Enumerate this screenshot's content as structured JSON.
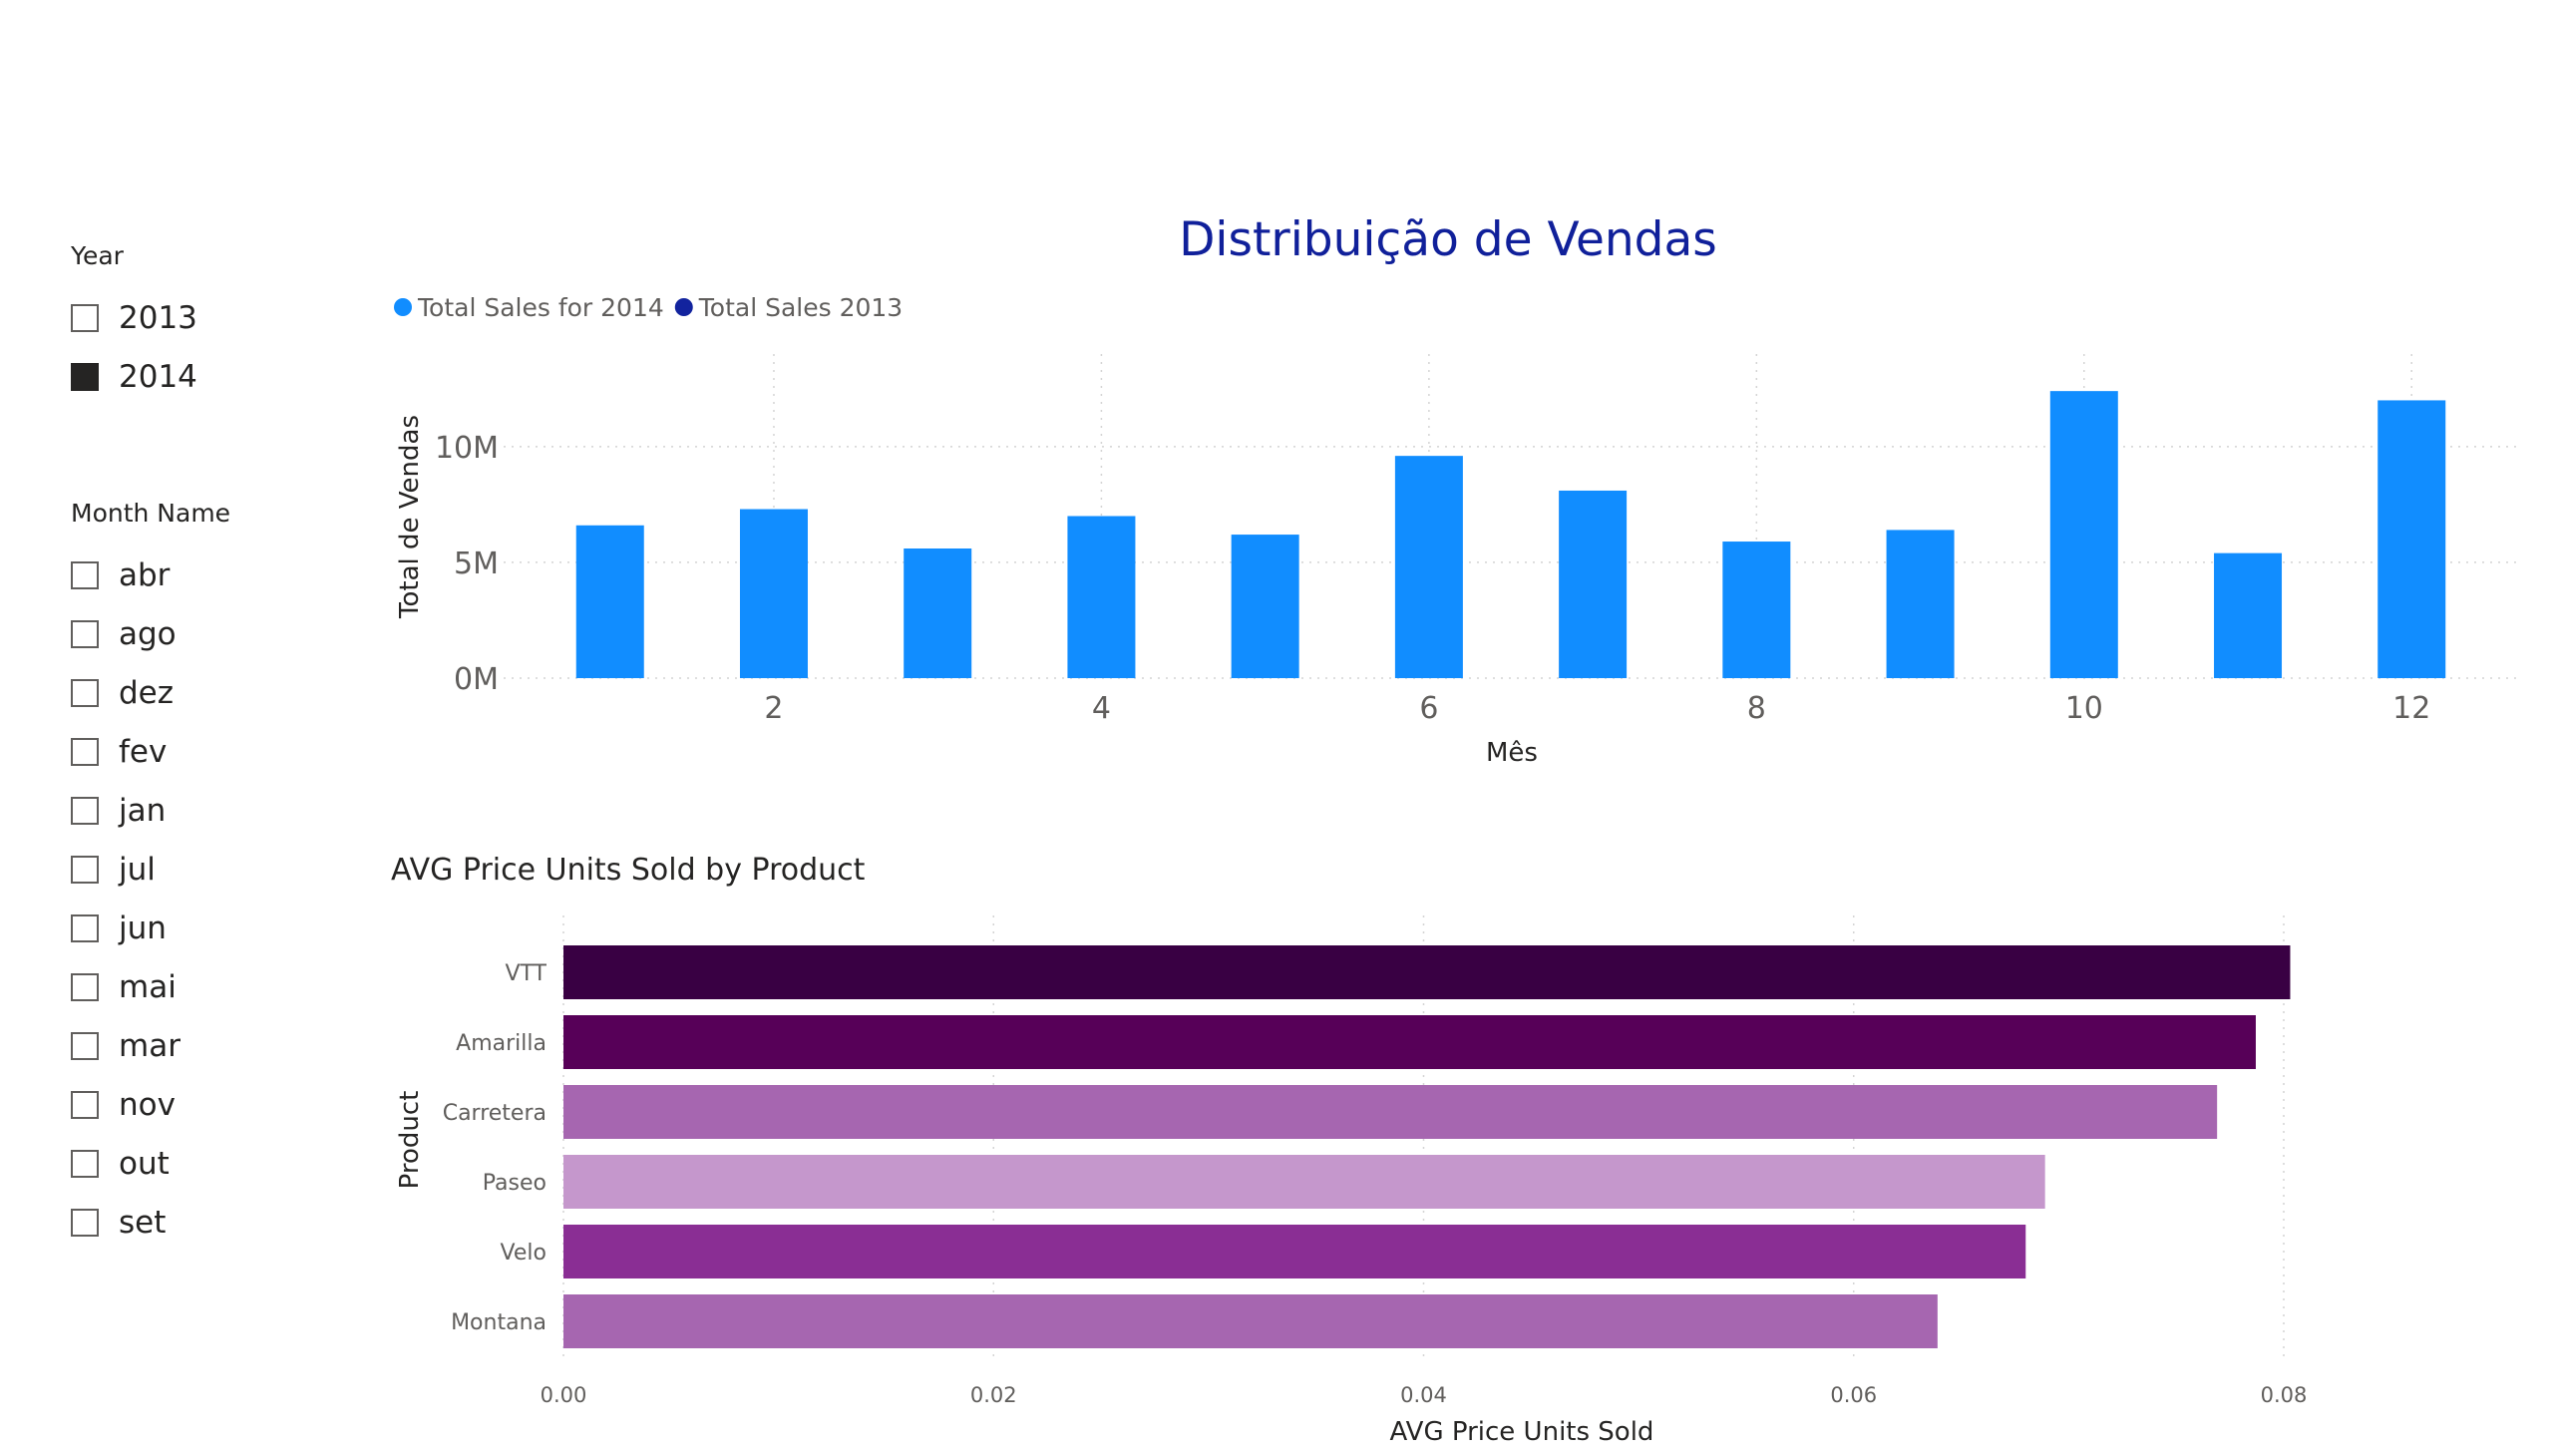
{
  "slicers": {
    "year": {
      "title": "Year",
      "items": [
        {
          "label": "2013",
          "checked": false
        },
        {
          "label": "2014",
          "checked": true
        }
      ]
    },
    "month": {
      "title": "Month Name",
      "items": [
        {
          "label": "abr",
          "checked": false
        },
        {
          "label": "ago",
          "checked": false
        },
        {
          "label": "dez",
          "checked": false
        },
        {
          "label": "fev",
          "checked": false
        },
        {
          "label": "jan",
          "checked": false
        },
        {
          "label": "jul",
          "checked": false
        },
        {
          "label": "jun",
          "checked": false
        },
        {
          "label": "mai",
          "checked": false
        },
        {
          "label": "mar",
          "checked": false
        },
        {
          "label": "nov",
          "checked": false
        },
        {
          "label": "out",
          "checked": false
        },
        {
          "label": "set",
          "checked": false
        }
      ]
    }
  },
  "chart_data": [
    {
      "type": "bar",
      "title": "Distribuição de Vendas",
      "xlabel": "Mês",
      "ylabel": "Total de Vendas",
      "legend": [
        {
          "name": "Total Sales for 2014",
          "color": "#118dff"
        },
        {
          "name": "Total Sales 2013",
          "color": "#12239e"
        }
      ],
      "legend_position": "top-left",
      "x": [
        1,
        2,
        3,
        4,
        5,
        6,
        7,
        8,
        9,
        10,
        11,
        12
      ],
      "xticks": [
        "2",
        "4",
        "6",
        "8",
        "10",
        "12"
      ],
      "xtick_values": [
        2,
        4,
        6,
        8,
        10,
        12
      ],
      "yticks": [
        "0M",
        "5M",
        "10M"
      ],
      "ytick_values": [
        0,
        5000000,
        10000000
      ],
      "ylim": [
        0,
        14000000
      ],
      "series": [
        {
          "name": "Total Sales for 2014",
          "color": "#118dff",
          "values": [
            6600000,
            7300000,
            5600000,
            7000000,
            6200000,
            9600000,
            8100000,
            5900000,
            6400000,
            12400000,
            5400000,
            12000000
          ]
        }
      ],
      "grid": true
    },
    {
      "type": "bar",
      "orientation": "horizontal",
      "title": "AVG Price Units Sold by Product",
      "xlabel": "AVG Price Units Sold",
      "ylabel": "Product",
      "categories": [
        "VTT",
        "Amarilla",
        "Carretera",
        "Paseo",
        "Velo",
        "Montana"
      ],
      "values": [
        0.0803,
        0.0787,
        0.0769,
        0.0689,
        0.068,
        0.0639
      ],
      "colors": [
        "#390043",
        "#570058",
        "#a666b0",
        "#c597cc",
        "#8a2e94",
        "#a666b0"
      ],
      "xticks": [
        "0.00",
        "0.02",
        "0.04",
        "0.06",
        "0.08"
      ],
      "xtick_values": [
        0,
        0.02,
        0.04,
        0.06,
        0.08
      ],
      "xlim": [
        0,
        0.08
      ],
      "grid": true
    }
  ]
}
